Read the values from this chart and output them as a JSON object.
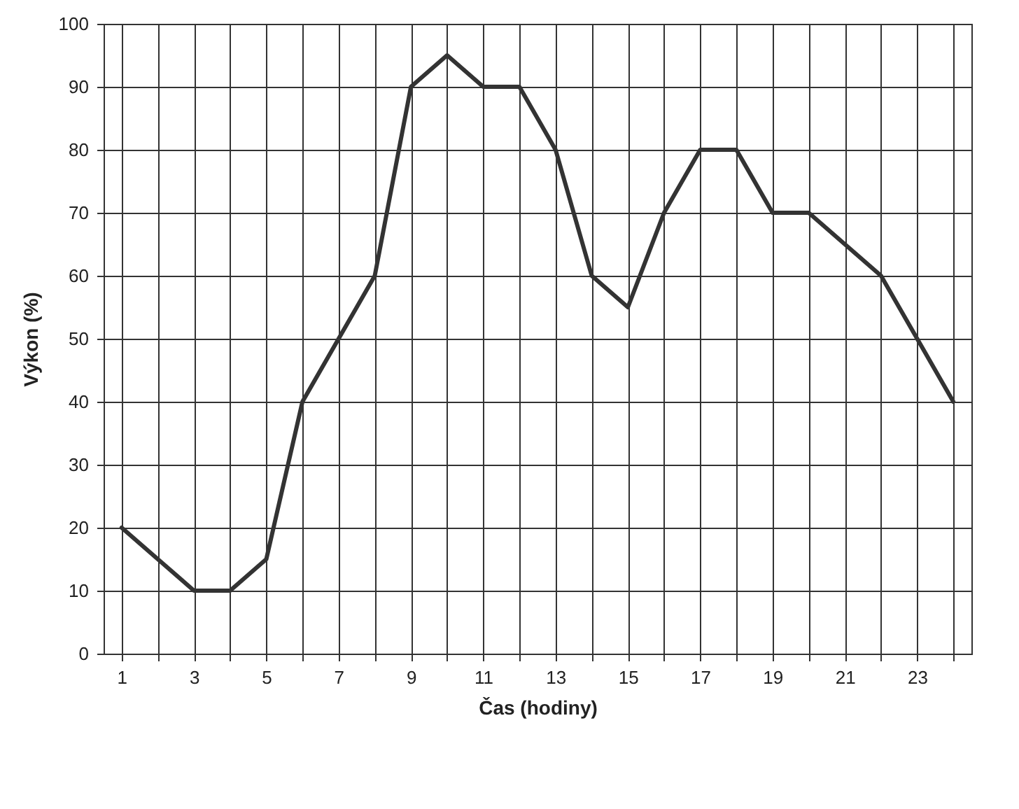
{
  "chart_data": {
    "type": "line",
    "xlabel": "Čas (hodiny)",
    "ylabel": "Výkon (%)",
    "x": [
      1,
      2,
      3,
      4,
      5,
      6,
      7,
      8,
      9,
      10,
      11,
      12,
      13,
      14,
      15,
      16,
      17,
      18,
      19,
      20,
      21,
      22,
      23,
      24
    ],
    "series": [
      {
        "color": "#333333",
        "values": [
          20,
          15,
          10,
          10,
          15,
          40,
          50,
          60,
          90,
          95,
          90,
          90,
          80,
          60,
          55,
          70,
          80,
          80,
          70,
          70,
          65,
          60,
          50,
          40
        ]
      }
    ],
    "xlim": [
      0.5,
      24.5
    ],
    "xticks": [
      1,
      {
        "value": 2,
        "label": null
      },
      3,
      {
        "value": 4,
        "label": null
      },
      5,
      {
        "value": 6,
        "label": null
      },
      7,
      {
        "value": 8,
        "label": null
      },
      9,
      {
        "value": 10,
        "label": null
      },
      11,
      {
        "value": 12,
        "label": null
      },
      13,
      {
        "value": 14,
        "label": null
      },
      15,
      {
        "value": 16,
        "label": null
      },
      17,
      {
        "value": 18,
        "label": null
      },
      19,
      {
        "value": 20,
        "label": null
      },
      21,
      {
        "value": 22,
        "label": null
      },
      23,
      {
        "value": 24,
        "label": null
      }
    ],
    "ylim": [
      0,
      100
    ],
    "yticks": [
      0,
      10,
      20,
      30,
      40,
      50,
      60,
      70,
      80,
      90,
      100
    ],
    "grid": true,
    "marker": "none",
    "line_style": "solid"
  }
}
